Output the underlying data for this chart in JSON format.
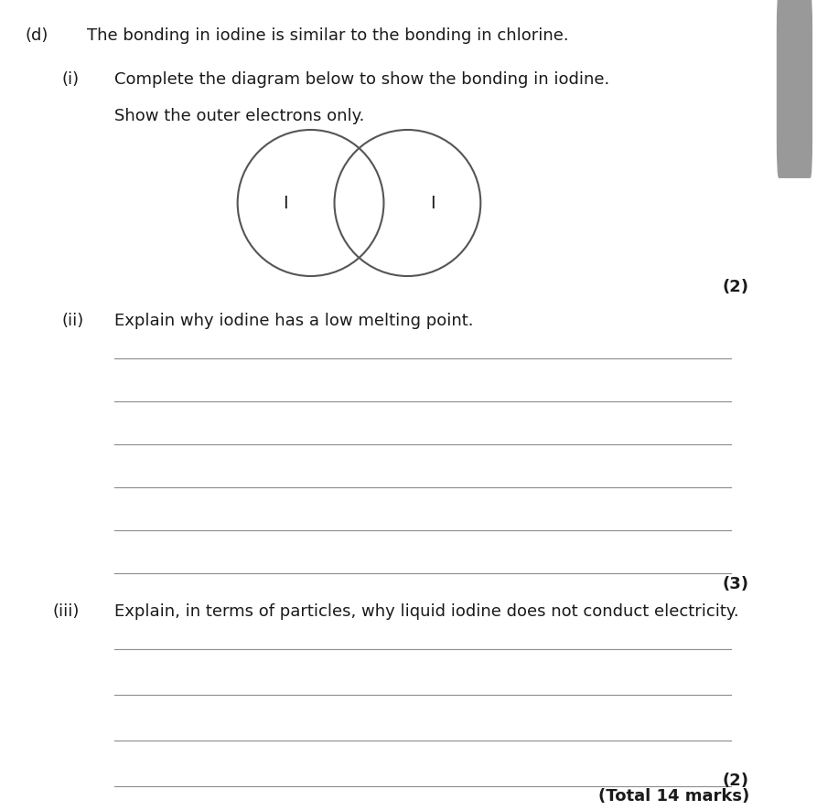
{
  "background_color": "#ffffff",
  "fig_width": 8.93,
  "fig_height": 8.86,
  "dpi": 100,
  "text_color": "#1a1a1a",
  "line_color": "#909090",
  "section_d_label": "(d)",
  "section_d_text": "The bonding in iodine is similar to the bonding in chlorine.",
  "section_i_label": "(i)",
  "section_i_text": "Complete the diagram below to show the bonding in iodine.",
  "section_i_subtext": "Show the outer electrons only.",
  "atom1_label": "I",
  "atom2_label": "I",
  "marks_i": "(2)",
  "section_ii_label": "(ii)",
  "section_ii_text": "Explain why iodine has a low melting point.",
  "section_ii_lines": 6,
  "marks_ii": "(3)",
  "section_iii_label": "(iii)",
  "section_iii_text": "Explain, in terms of particles, why liquid iodine does not conduct electricity.",
  "section_iii_lines": 4,
  "marks_iii": "(2)",
  "total_marks": "(Total 14 marks)",
  "scrollbar_bg": "#1a1a1a",
  "scrollbar_thumb": "#999999"
}
